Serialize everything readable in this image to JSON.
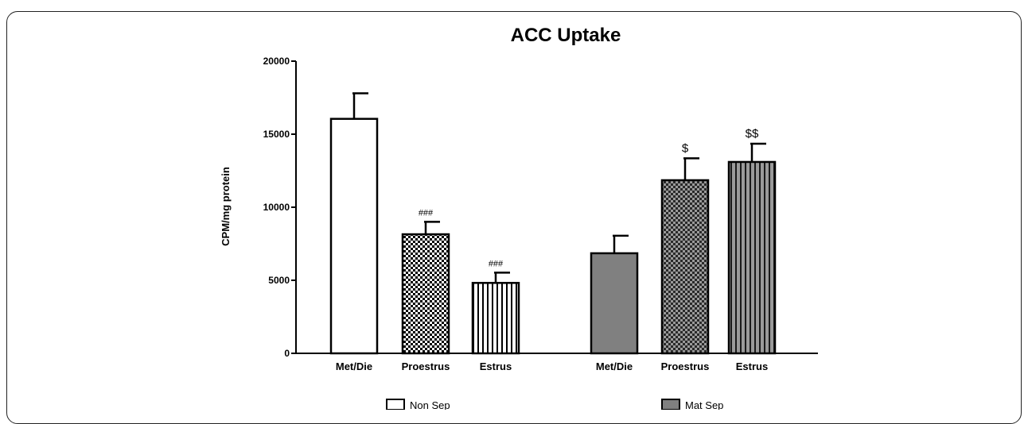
{
  "chart_data": {
    "type": "bar",
    "title": "ACC Uptake",
    "xlabel": "",
    "ylabel": "CPM/mg protein",
    "ylim": [
      0,
      20000
    ],
    "yticks": [
      0,
      5000,
      10000,
      15000,
      20000
    ],
    "grid": false,
    "legend_position": "bottom",
    "colors": {
      "non_sep_fill": "#ffffff",
      "mat_sep_fill": "#808080",
      "stroke": "#000000"
    },
    "groups": [
      {
        "name": "Non Sep",
        "bars": [
          {
            "label": "Met/Die",
            "value": 16050,
            "error": 1750,
            "annotation": "",
            "pattern": "solid-white"
          },
          {
            "label": "Proestrus",
            "value": 8150,
            "error": 850,
            "annotation": "###",
            "pattern": "checker"
          },
          {
            "label": "Estrus",
            "value": 4820,
            "error": 700,
            "annotation": "###",
            "pattern": "vertical-lines"
          }
        ]
      },
      {
        "name": "Mat Sep",
        "bars": [
          {
            "label": "Met/Die",
            "value": 6850,
            "error": 1200,
            "annotation": "",
            "pattern": "solid-gray"
          },
          {
            "label": "Proestrus",
            "value": 11850,
            "error": 1500,
            "annotation": "$",
            "pattern": "checker-gray"
          },
          {
            "label": "Estrus",
            "value": 13100,
            "error": 1250,
            "annotation": "$$",
            "pattern": "vertical-lines-gray"
          }
        ]
      }
    ],
    "legend": [
      {
        "label": "Non Sep",
        "swatch": "white"
      },
      {
        "label": "Mat Sep",
        "swatch": "gray"
      }
    ]
  }
}
